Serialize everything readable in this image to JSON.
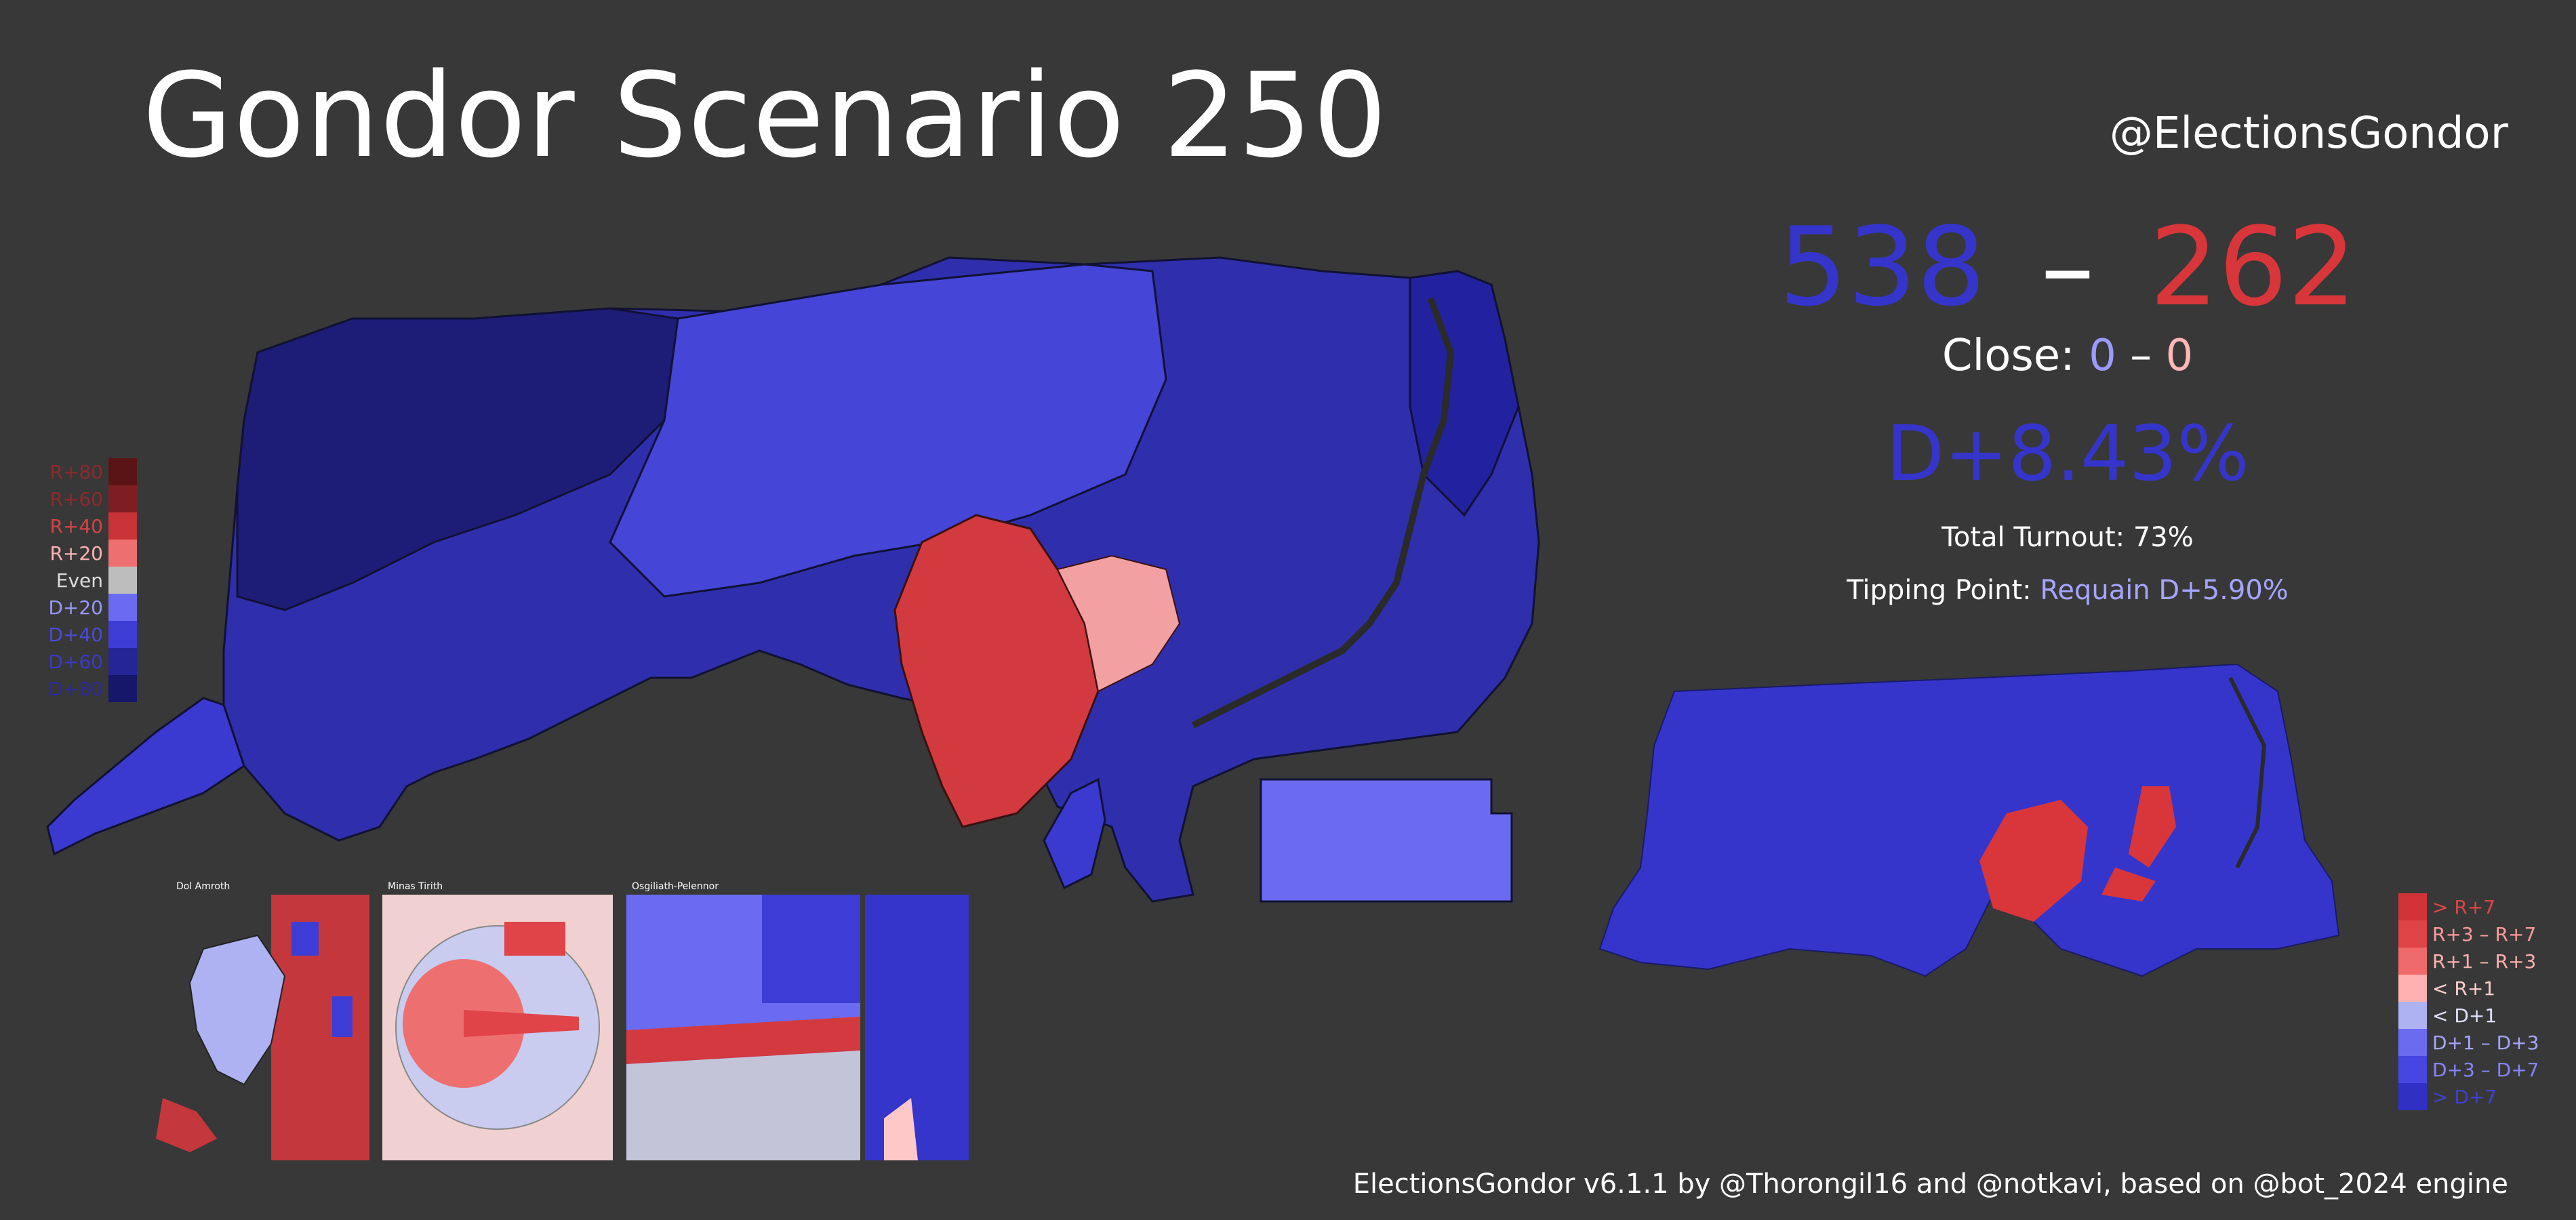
{
  "header": {
    "title": "Gondor Scenario 250",
    "handle": "@ElectionsGondor"
  },
  "results": {
    "dem_seats": "538",
    "separator": "–",
    "rep_seats": "262",
    "close_label": "Close:",
    "close_dem": "0",
    "close_sep": "–",
    "close_rep": "0",
    "popular_margin": "D+8.43%",
    "turnout_text": "Total Turnout: 73%",
    "tipping_label": "Tipping Point:",
    "tipping_value": "Requain D+5.90%"
  },
  "left_legend": [
    {
      "label": "R+80",
      "color": "#5a1416",
      "text_color": "#8e2a2c"
    },
    {
      "label": "R+60",
      "color": "#7e1e22",
      "text_color": "#8e2a2c"
    },
    {
      "label": "R+40",
      "color": "#c93236",
      "text_color": "#d34346"
    },
    {
      "label": "R+20",
      "color": "#ee6f70",
      "text_color": "#ffb3b3"
    },
    {
      "label": "Even",
      "color": "#bdbdbd",
      "text_color": "#dddddd"
    },
    {
      "label": "D+20",
      "color": "#6b6bf2",
      "text_color": "#9898ff"
    },
    {
      "label": "D+40",
      "color": "#3d3dd6",
      "text_color": "#4a4ad8"
    },
    {
      "label": "D+60",
      "color": "#252598",
      "text_color": "#3a3ac6"
    },
    {
      "label": "D+80",
      "color": "#16166a",
      "text_color": "#2a2a9a"
    }
  ],
  "right_legend": [
    {
      "label": "> R+7",
      "color": "#d13338",
      "text_color": "#e04448"
    },
    {
      "label": "R+3 – R+7",
      "color": "#e04346",
      "text_color": "#ff9a9a"
    },
    {
      "label": "R+1 – R+3",
      "color": "#f06a6b",
      "text_color": "#ffb0b0"
    },
    {
      "label": "< R+1",
      "color": "#ffb0b0",
      "text_color": "#ffd0d0"
    },
    {
      "label": "< D+1",
      "color": "#aeb2f2",
      "text_color": "#e0e2ff"
    },
    {
      "label": "D+1 – D+3",
      "color": "#6b6bf2",
      "text_color": "#a5a5ff"
    },
    {
      "label": "D+3 – D+7",
      "color": "#4646e2",
      "text_color": "#8585ff"
    },
    {
      "label": "> D+7",
      "color": "#3030c6",
      "text_color": "#4040d0"
    }
  ],
  "insets": [
    {
      "label": "Dol Amroth"
    },
    {
      "label": "Minas Tirith"
    },
    {
      "label": "Osgiliath-Pelennor"
    }
  ],
  "footer": {
    "credit": "ElectionsGondor v6.1.1 by @Thorongil16 and @notkavi, based on @bot_2024 engine"
  },
  "colors": {
    "background": "#383838",
    "dem": "#3535cc",
    "rep": "#d8363b",
    "close_dem": "#9a9aff",
    "close_rep": "#ffb7b7",
    "tipping_value": "#a5a5ff"
  }
}
